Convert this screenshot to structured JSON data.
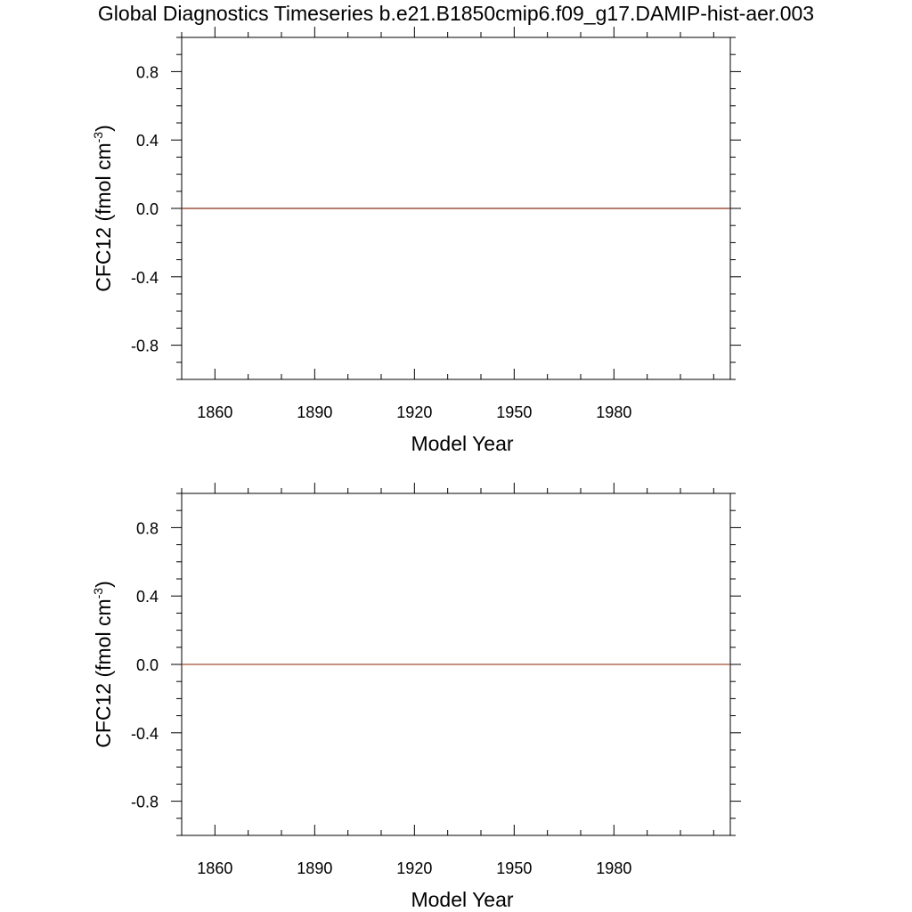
{
  "page": {
    "title": "Global Diagnostics Timeseries b.e21.B1850cmip6.f09_g17.DAMIP-hist-aer.003"
  },
  "chart_data": [
    {
      "type": "line",
      "title": "",
      "xlabel": "Model Year",
      "ylabel": "CFC12 (fmol cm",
      "ylabel_exponent": "-3",
      "ylabel_suffix": ")",
      "xlim": [
        1850,
        2015
      ],
      "ylim": [
        -1.0,
        1.0
      ],
      "xticks": [
        1860,
        1890,
        1920,
        1950,
        1980
      ],
      "yticks": [
        -0.8,
        -0.4,
        0.0,
        0.4,
        0.8
      ],
      "ytick_labels": [
        "-0.8",
        "-0.4",
        "0.0",
        "0.4",
        "0.8"
      ],
      "grid": false,
      "series": [
        {
          "color": "#8b2e16",
          "x": [
            1850,
            2015
          ],
          "y": [
            0.0,
            0.0
          ]
        }
      ]
    },
    {
      "type": "line",
      "title": "",
      "xlabel": "Model Year",
      "ylabel": "CFC12 (fmol cm",
      "ylabel_exponent": "-3",
      "ylabel_suffix": ")",
      "xlim": [
        1850,
        2015
      ],
      "ylim": [
        -1.0,
        1.0
      ],
      "xticks": [
        1860,
        1890,
        1920,
        1950,
        1980
      ],
      "yticks": [
        -0.8,
        -0.4,
        0.0,
        0.4,
        0.8
      ],
      "ytick_labels": [
        "-0.8",
        "-0.4",
        "0.0",
        "0.4",
        "0.8"
      ],
      "grid": false,
      "series": [
        {
          "color": "#a0522d",
          "x": [
            1850,
            2015
          ],
          "y": [
            0.0,
            0.0
          ]
        }
      ]
    }
  ]
}
